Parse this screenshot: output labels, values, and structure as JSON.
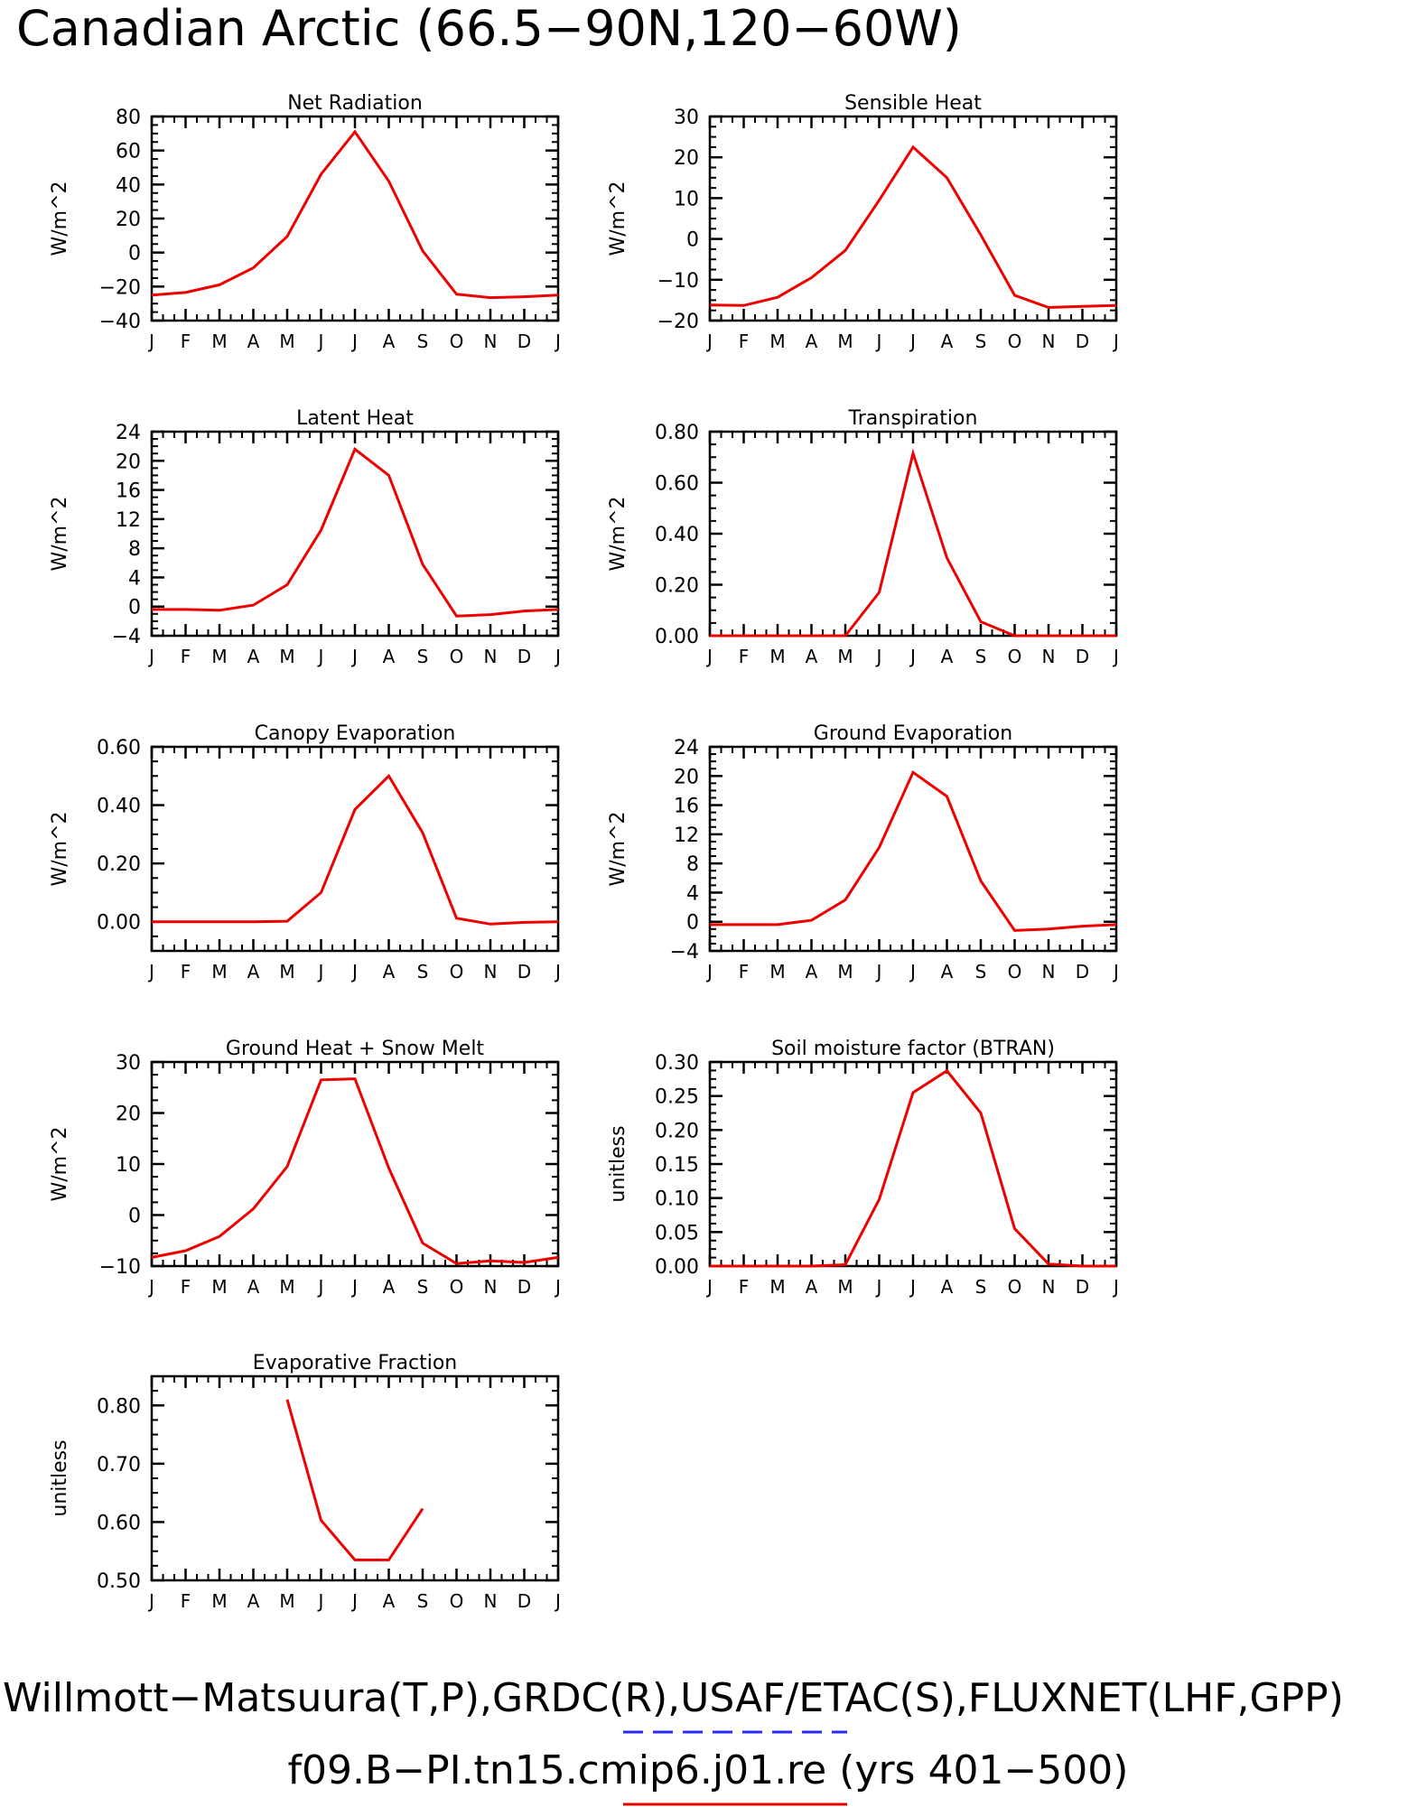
{
  "title": "Canadian Arctic (66.5−90N,120−60W)",
  "footer": {
    "line1": "Willmott−Matsuura(T,P),GRDC(R),USAF/ETAC(S),FLUXNET(LHF,GPP)",
    "line2": "f09.B−PI.tn15.cmip6.j01.re (yrs 401−500)",
    "obs_line_color": "#2a2aff",
    "model_line_color": "#ee0000"
  },
  "series_color": "#ee0000",
  "months": [
    "J",
    "F",
    "M",
    "A",
    "M",
    "J",
    "J",
    "A",
    "S",
    "O",
    "N",
    "D",
    "J"
  ],
  "chart_data": [
    {
      "type": "line",
      "title": "Net Radiation",
      "ylabel": "W/m^2",
      "ylim": [
        -40,
        80
      ],
      "yticks": [
        -40,
        -20,
        0,
        20,
        40,
        60,
        80
      ],
      "ytick_labels": [
        "−40",
        "−20",
        "0",
        "20",
        "40",
        "60",
        "80"
      ],
      "values": [
        -25,
        -23.5,
        -19,
        -9,
        9.5,
        46,
        71,
        42,
        1,
        -24.5,
        -26.5,
        -26,
        -25
      ]
    },
    {
      "type": "line",
      "title": "Sensible Heat",
      "ylabel": "W/m^2",
      "ylim": [
        -20,
        30
      ],
      "yticks": [
        -20,
        -10,
        0,
        10,
        20,
        30
      ],
      "ytick_labels": [
        "−20",
        "−10",
        "0",
        "10",
        "20",
        "30"
      ],
      "values": [
        -16.2,
        -16.3,
        -14.3,
        -9.5,
        -2.8,
        9.5,
        22.5,
        15,
        1,
        -13.8,
        -16.8,
        -16.5,
        -16.3
      ]
    },
    {
      "type": "line",
      "title": "Latent Heat",
      "ylabel": "W/m^2",
      "ylim": [
        -4,
        24
      ],
      "yticks": [
        -4,
        0,
        4,
        8,
        12,
        16,
        20,
        24
      ],
      "ytick_labels": [
        "−4",
        "0",
        "4",
        "8",
        "12",
        "16",
        "20",
        "24"
      ],
      "values": [
        -0.4,
        -0.4,
        -0.5,
        0.2,
        3,
        10.5,
        21.6,
        18,
        5.8,
        -1.3,
        -1.1,
        -0.6,
        -0.4
      ]
    },
    {
      "type": "line",
      "title": "Transpiration",
      "ylabel": "W/m^2",
      "ylim": [
        0,
        0.8
      ],
      "yticks": [
        0,
        0.2,
        0.4,
        0.6,
        0.8
      ],
      "ytick_labels": [
        "0.00",
        "0.20",
        "0.40",
        "0.60",
        "0.80"
      ],
      "values": [
        0,
        0,
        0,
        0,
        0,
        0.17,
        0.715,
        0.305,
        0.055,
        0,
        0,
        0,
        0
      ]
    },
    {
      "type": "line",
      "title": "Canopy Evaporation",
      "ylabel": "W/m^2",
      "ylim": [
        -0.1,
        0.6
      ],
      "yticks": [
        0,
        0.2,
        0.4,
        0.6
      ],
      "ytick_labels": [
        "0.00",
        "0.20",
        "0.40",
        "0.60"
      ],
      "values": [
        0,
        0,
        0,
        0,
        0.002,
        0.1,
        0.385,
        0.5,
        0.305,
        0.012,
        -0.008,
        -0.002,
        0
      ]
    },
    {
      "type": "line",
      "title": "Ground Evaporation",
      "ylabel": "W/m^2",
      "ylim": [
        -4,
        24
      ],
      "yticks": [
        -4,
        0,
        4,
        8,
        12,
        16,
        20,
        24
      ],
      "ytick_labels": [
        "−4",
        "0",
        "4",
        "8",
        "12",
        "16",
        "20",
        "24"
      ],
      "values": [
        -0.4,
        -0.4,
        -0.4,
        0.2,
        3,
        10.2,
        20.5,
        17.2,
        5.6,
        -1.2,
        -1,
        -0.6,
        -0.4
      ]
    },
    {
      "type": "line",
      "title": "Ground Heat + Snow Melt",
      "ylabel": "W/m^2",
      "ylim": [
        -10,
        30
      ],
      "yticks": [
        -10,
        0,
        10,
        20,
        30
      ],
      "ytick_labels": [
        "−10",
        "0",
        "10",
        "20",
        "30"
      ],
      "values": [
        -8.3,
        -7,
        -4.2,
        1.2,
        9.5,
        26.5,
        26.7,
        9.2,
        -5.5,
        -9.5,
        -9,
        -9.3,
        -8.3
      ]
    },
    {
      "type": "line",
      "title": "Soil moisture factor (BTRAN)",
      "ylabel": "unitless",
      "ylim": [
        0,
        0.3
      ],
      "yticks": [
        0,
        0.05,
        0.1,
        0.15,
        0.2,
        0.25,
        0.3
      ],
      "ytick_labels": [
        "0.00",
        "0.05",
        "0.10",
        "0.15",
        "0.20",
        "0.25",
        "0.30"
      ],
      "values": [
        0,
        0,
        0,
        0,
        0.002,
        0.098,
        0.255,
        0.287,
        0.225,
        0.055,
        0.003,
        0,
        0
      ]
    },
    {
      "type": "line",
      "title": "Evaporative Fraction",
      "ylabel": "unitless",
      "ylim": [
        0.5,
        0.85
      ],
      "yticks": [
        0.5,
        0.6,
        0.7,
        0.8
      ],
      "ytick_labels": [
        "0.50",
        "0.60",
        "0.70",
        "0.80"
      ],
      "values": [
        null,
        null,
        null,
        null,
        0.81,
        0.603,
        0.535,
        0.535,
        0.623,
        null,
        null,
        null,
        null
      ]
    }
  ]
}
